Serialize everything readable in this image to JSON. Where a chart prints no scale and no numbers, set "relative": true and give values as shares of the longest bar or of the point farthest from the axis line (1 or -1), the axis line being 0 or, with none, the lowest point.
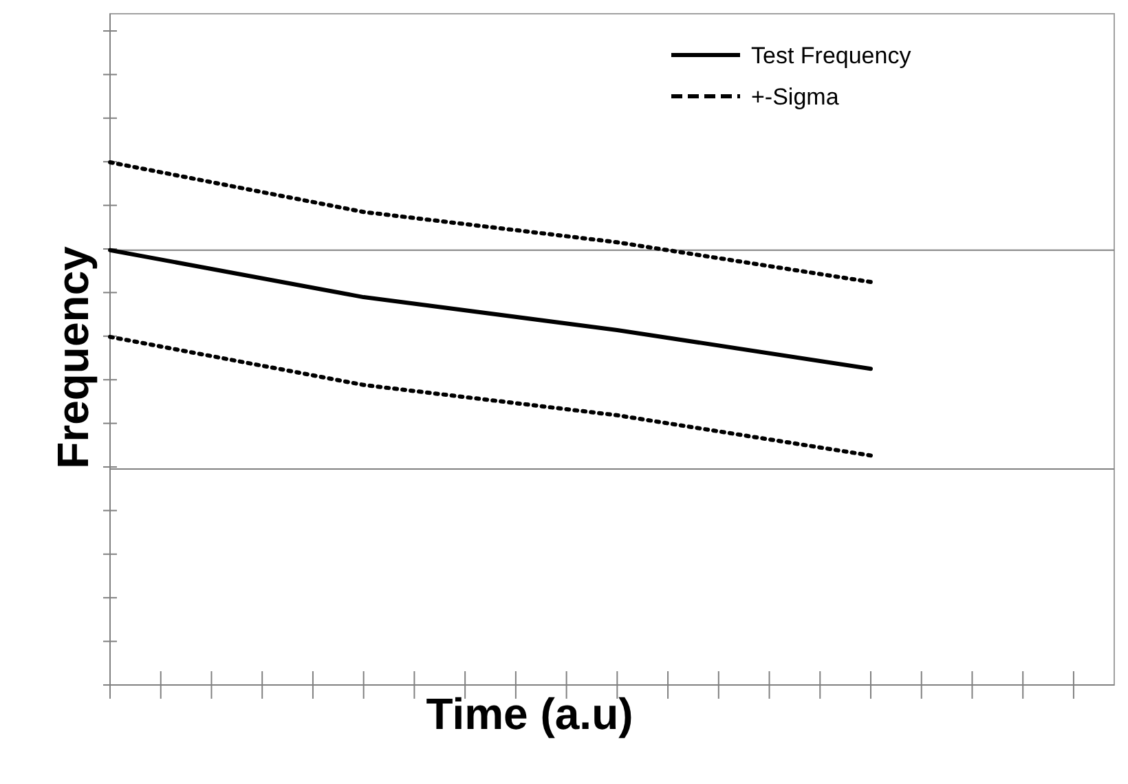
{
  "chart_data": {
    "type": "line",
    "relative": true,
    "xlabel": "Time (a.u)",
    "ylabel": "Frequency",
    "categories": [
      null,
      null,
      null,
      null
    ],
    "legend": "top right",
    "series": [
      {
        "name": "Test Frequency",
        "color": "#000000",
        "line_style": "solid",
        "values": [
          0.832,
          0.742,
          0.679,
          0.605
        ]
      },
      {
        "name": "+-Sigma",
        "color": "#000000",
        "line_style": "dotted",
        "values": [
          1,
          0.905,
          0.847,
          0.771
        ]
      },
      {
        "color": "#000000",
        "line_style": "dotted",
        "values": [
          0.666,
          0.574,
          0.516,
          0.439
        ]
      }
    ],
    "ref_lines": [
      {
        "axis": "y",
        "value": 0.832,
        "color": "#808080"
      },
      {
        "axis": "y",
        "value": 0.413,
        "color": "#808080"
      }
    ]
  }
}
